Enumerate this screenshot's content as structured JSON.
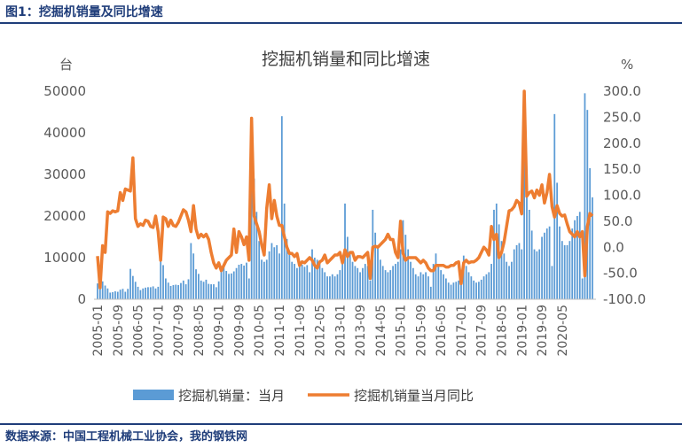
{
  "figure_title": "图1：挖掘机销量及同比增速",
  "source": "数据来源：中国工程机械工业协会，我的钢铁网",
  "colors": {
    "bar": "#5b9bd5",
    "line": "#ed7d31",
    "header": "#1f3d7a"
  },
  "chart_data": {
    "type": "bar+line",
    "title": "挖掘机销量和同比增速",
    "ylabel_left": "台",
    "ylabel_right": "%",
    "ylim_left": [
      0,
      50000
    ],
    "ylim_right": [
      -100,
      300
    ],
    "yticks_left": [
      "0",
      "10000",
      "20000",
      "30000",
      "40000",
      "50000"
    ],
    "yticks_right": [
      "-100.0",
      "-50.0",
      "0.0",
      "50.0",
      "100.0",
      "150.0",
      "200.0",
      "250.0",
      "300.0"
    ],
    "xticks": [
      "2005-01",
      "2005-09",
      "2006-05",
      "2007-01",
      "2007-09",
      "2008-05",
      "2009-01",
      "2009-09",
      "2010-05",
      "2011-01",
      "2011-09",
      "2012-05",
      "2013-01",
      "2013-09",
      "2014-05",
      "2015-01",
      "2015-09",
      "2016-05",
      "2017-01",
      "2017-09",
      "2018-05",
      "2019-01",
      "2019-09",
      "2020-05"
    ],
    "legend": [
      "挖掘机销量：当月",
      "挖掘机销量当月同比"
    ],
    "legend_position": "bottom",
    "grid": false,
    "series": [
      {
        "name": "挖掘机销量：当月",
        "type": "bar",
        "axis": "left",
        "x_start": "2005-01",
        "values": [
          3800,
          4200,
          4300,
          3300,
          2600,
          1600,
          1700,
          1900,
          1800,
          2300,
          2500,
          1800,
          2500,
          7300,
          5600,
          4200,
          3000,
          2200,
          2600,
          2800,
          2900,
          2900,
          3100,
          2600,
          3000,
          10000,
          8200,
          5000,
          4000,
          3200,
          3400,
          3500,
          3400,
          3900,
          4500,
          3600,
          4800,
          13500,
          11000,
          7200,
          6100,
          4500,
          4200,
          4700,
          3700,
          3600,
          3600,
          2900,
          4300,
          8000,
          7800,
          6800,
          6100,
          6200,
          6700,
          7500,
          8300,
          8500,
          8100,
          8800,
          5000,
          30000,
          29000,
          21000,
          14000,
          9500,
          9000,
          9500,
          11500,
          13500,
          12500,
          13000,
          11000,
          44000,
          23000,
          14500,
          11000,
          9000,
          8500,
          7500,
          8000,
          8300,
          7800,
          8200,
          6500,
          12000,
          10000,
          9500,
          8500,
          7500,
          6500,
          5500,
          5500,
          6000,
          5500,
          6000,
          7000,
          9500,
          23000,
          15000,
          11000,
          9000,
          8000,
          7500,
          6500,
          7500,
          8500,
          8000,
          4500,
          21500,
          16000,
          13000,
          9500,
          8000,
          7000,
          6500,
          7000,
          8000,
          8500,
          9000,
          12000,
          19000,
          15500,
          12000,
          9000,
          7500,
          6000,
          5500,
          6500,
          6000,
          6500,
          5500,
          3000,
          8500,
          11000,
          8000,
          7000,
          6000,
          5000,
          4000,
          3500,
          4000,
          4200,
          4500,
          5000,
          10500,
          8000,
          6500,
          5500,
          4500,
          4000,
          4200,
          4700,
          5500,
          6000,
          6500,
          8500,
          21500,
          23000,
          18000,
          14000,
          11000,
          9000,
          8000,
          9000,
          12000,
          13000,
          13500,
          12000,
          37800,
          28000,
          21500,
          16500,
          12000,
          11500,
          12000,
          15000,
          16000,
          17000,
          17500,
          8000,
          44500,
          28000,
          17500,
          14000,
          13000,
          13000,
          14000,
          17000,
          19000,
          20000,
          21000,
          5000,
          49500,
          45500,
          31500,
          24500
        ]
      },
      {
        "name": "挖掘机销量当月同比",
        "type": "line",
        "axis": "right",
        "x_start": "2005-01",
        "values": [
          -17,
          -78,
          3,
          -10,
          68,
          65,
          70,
          68,
          70,
          105,
          90,
          112,
          110,
          108,
          172,
          55,
          40,
          45,
          42,
          52,
          50,
          40,
          38,
          60,
          30,
          -25,
          58,
          55,
          40,
          52,
          42,
          40,
          48,
          60,
          72,
          68,
          52,
          30,
          80,
          35,
          18,
          25,
          20,
          25,
          15,
          -10,
          -30,
          -40,
          -30,
          -45,
          -35,
          -25,
          -20,
          -15,
          35,
          -10,
          30,
          20,
          5,
          20,
          -25,
          248,
          60,
          45,
          30,
          5,
          -15,
          75,
          120,
          55,
          90,
          60,
          42,
          42,
          20,
          0,
          -12,
          -12,
          -18,
          -12,
          -35,
          -28,
          -30,
          -25,
          -20,
          -25,
          -35,
          -40,
          -28,
          -25,
          -15,
          -30,
          -25,
          -20,
          -15,
          -15,
          -10,
          -30,
          -5,
          -18,
          -10,
          -10,
          -25,
          -18,
          -18,
          -20,
          -15,
          -10,
          -60,
          0,
          2,
          0,
          5,
          10,
          15,
          25,
          15,
          15,
          -10,
          -20,
          50,
          -12,
          -25,
          -20,
          -20,
          -20,
          -20,
          -25,
          -30,
          -25,
          -30,
          -40,
          -45,
          -45,
          -35,
          -35,
          -35,
          -35,
          -38,
          -38,
          -35,
          -35,
          -30,
          -28,
          -70,
          -30,
          -25,
          -30,
          -28,
          -28,
          -25,
          -20,
          -10,
          0,
          -5,
          -15,
          40,
          15,
          25,
          -20,
          -10,
          10,
          40,
          70,
          72,
          78,
          90,
          85,
          64,
          300,
          98,
          105,
          108,
          95,
          110,
          100,
          120,
          85,
          105,
          140,
          78,
          58,
          80,
          65,
          60,
          62,
          45,
          30,
          25,
          20,
          30,
          20,
          30,
          -55,
          40,
          65,
          60
        ]
      }
    ]
  }
}
